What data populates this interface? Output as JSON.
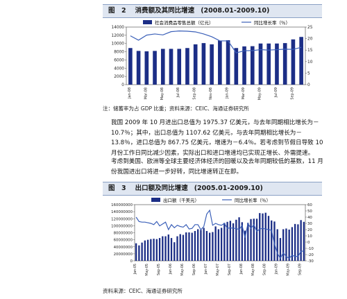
{
  "figure1": {
    "label": "图　2",
    "title": "消费额及其同比增速",
    "period": "(2008.01-2009.10)",
    "note": "注：储蓄率为占 GDP 比重；资料来源：CEIC、海通证券研究所",
    "chart_data": {
      "type": "bar",
      "categories": [
        "Jan-08",
        "Feb-08",
        "Mar-08",
        "Apr-08",
        "May-08",
        "Jun-08",
        "Jul-08",
        "Aug-08",
        "Sep-08",
        "Oct-08",
        "Nov-08",
        "Dec-08",
        "Jan-09",
        "Feb-09",
        "Mar-09",
        "Apr-09",
        "May-09",
        "Jun-09",
        "Jul-09",
        "Aug-09",
        "Sep-09",
        "Oct-09"
      ],
      "x_tick_labels": [
        "Jan-08",
        "Mar-08",
        "May-08",
        "Jul-08",
        "Sep-08",
        "Nov-08",
        "Jan-09",
        "Mar-09",
        "May-09",
        "Jul-09",
        "Sep-09"
      ],
      "series": [
        {
          "name": "社会消费品零售总额（亿元）",
          "type": "bar",
          "axis": "left",
          "color": "#1c2e86",
          "values": [
            8900,
            8200,
            8100,
            8200,
            8700,
            8700,
            8700,
            8900,
            9800,
            10100,
            9800,
            10700,
            10800,
            8900,
            9300,
            9350,
            10000,
            10000,
            10000,
            10100,
            11000,
            11600
          ]
        },
        {
          "name": "同比增长率（％）",
          "type": "line",
          "axis": "right",
          "color": "#3a5fb8",
          "values": [
            21.2,
            19.3,
            21.5,
            22.0,
            21.6,
            23.0,
            23.3,
            23.2,
            22.9,
            22.0,
            20.8,
            19.0,
            19.0,
            13.8,
            14.7,
            14.8,
            15.2,
            15.0,
            15.2,
            15.4,
            15.3,
            16.2
          ]
        }
      ],
      "ylim_left": [
        0,
        14000
      ],
      "yticks_left": [
        "0",
        "2000",
        "4000",
        "6000",
        "8000",
        "10000",
        "12000",
        "14000"
      ],
      "ylim_right": [
        0,
        25
      ],
      "yticks_right": [
        "0",
        "5",
        "10",
        "15",
        "20",
        "25"
      ],
      "legend": "top"
    }
  },
  "paragraphs": [
    "我国 2009 年 10 月进出口总值为 1975.37 亿美元，与去年同期相比增长为－10.7％；其中，出口总值为 1107.62 亿美元，与去年同期相比增长为－13.8％，进口总值为 867.75 亿美元，增速为－6.4％。若考虑到节假日导致 10 月份工作日同比减少因素，实际出口和进口增速均已实现正增长、外需提速。",
    "考虑到美国、欧洲等全球主要经济体经济的回暖以及去年同期较低的基数，11 月份我国进出口将进一步好转，同比增速转正在即。"
  ],
  "figure2": {
    "label": "图　3",
    "title": "出口额及同比增速",
    "period": "(2005.01-2009.10)",
    "source": "资料来源：CEIC、海通证券研究所",
    "chart_data": {
      "type": "bar",
      "x_tick_labels": [
        "Jan-05",
        "May-05",
        "Sep-05",
        "Jan-06",
        "May-06",
        "Sep-06",
        "Jan-07",
        "May-07",
        "Sep-07",
        "Jan-08",
        "May-08",
        "Sep-08",
        "Jan-09",
        "May-09",
        "Sep-09"
      ],
      "series": [
        {
          "name": "出口额（千美元）",
          "type": "bar",
          "axis": "left",
          "color": "#1c2e86",
          "values": [
            50000000,
            44000000,
            52000000,
            58000000,
            60000000,
            62000000,
            63000000,
            62000000,
            65000000,
            70000000,
            70000000,
            75000000,
            65000000,
            53000000,
            70000000,
            76000000,
            74000000,
            81000000,
            81000000,
            80000000,
            85000000,
            90000000,
            88000000,
            94000000,
            85000000,
            80000000,
            82000000,
            98000000,
            90000000,
            94000000,
            108000000,
            111000000,
            114000000,
            107000000,
            117000000,
            124000000,
            110000000,
            86000000,
            108000000,
            119000000,
            120000000,
            120000000,
            136000000,
            135000000,
            137000000,
            128000000,
            115000000,
            112000000,
            90000000,
            65000000,
            90000000,
            92000000,
            89000000,
            96000000,
            105000000,
            104000000,
            116000000,
            111000000
          ]
        },
        {
          "name": "同比增长率（％）",
          "type": "line",
          "axis": "right",
          "color": "#3a5fb8",
          "values": [
            40,
            33,
            32,
            32,
            31,
            30,
            28,
            33,
            26,
            29,
            32,
            20,
            28,
            23,
            27,
            25,
            24,
            28,
            21,
            22,
            28,
            28,
            20,
            25,
            45,
            51,
            27,
            30,
            28,
            27,
            30,
            22,
            23,
            22,
            22,
            20,
            27,
            7,
            30,
            22,
            28,
            17,
            21,
            22,
            21,
            20,
            19,
            -3,
            -18,
            -26,
            -17,
            -23,
            -26,
            -21,
            -23,
            -23,
            -15,
            -14
          ]
        }
      ],
      "ylim_left": [
        0,
        160000000
      ],
      "yticks_left": [
        "0",
        "20000000",
        "40000000",
        "60000000",
        "80000000",
        "100000000",
        "120000000",
        "140000000",
        "160000000"
      ],
      "ylim_right": [
        -30,
        60
      ],
      "yticks_right": [
        "-30",
        "-20",
        "-10",
        "0",
        "10",
        "20",
        "30",
        "40",
        "50",
        "60"
      ],
      "legend": "top"
    }
  }
}
